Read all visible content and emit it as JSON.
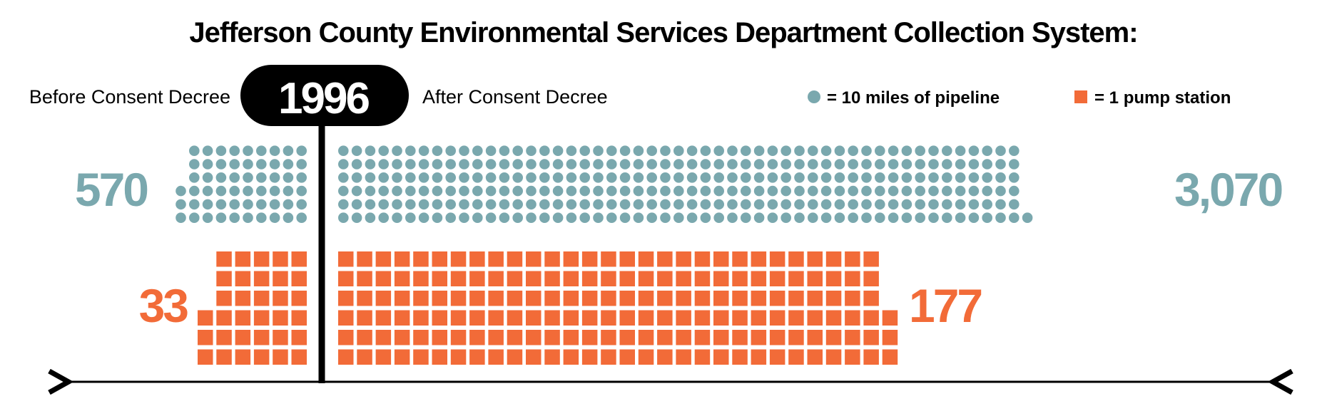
{
  "colors": {
    "pipeline": "#7aa8ae",
    "pump": "#f26b38",
    "ink": "#000000",
    "year_text": "#ffffff"
  },
  "chart_data": {
    "type": "pictogram",
    "title": "Jefferson County Environmental Services Department Collection System:",
    "divider_year": "1996",
    "before_label": "Before Consent Decree",
    "after_label": "After Consent Decree",
    "legend": [
      {
        "icon": "circle",
        "label": "= 10 miles of pipeline"
      },
      {
        "icon": "square",
        "label": "= 1 pump station"
      }
    ],
    "series": [
      {
        "name": "pipeline",
        "unit": "10 miles of pipeline",
        "before": {
          "value": 570,
          "label": "570",
          "icons": 57
        },
        "after": {
          "value": 3070,
          "label": "3,070",
          "icons": 307
        }
      },
      {
        "name": "pump station",
        "unit": "1 pump station",
        "before": {
          "value": 33,
          "label": "33",
          "icons": 33
        },
        "after": {
          "value": 177,
          "label": "177",
          "icons": 177
        }
      }
    ]
  }
}
